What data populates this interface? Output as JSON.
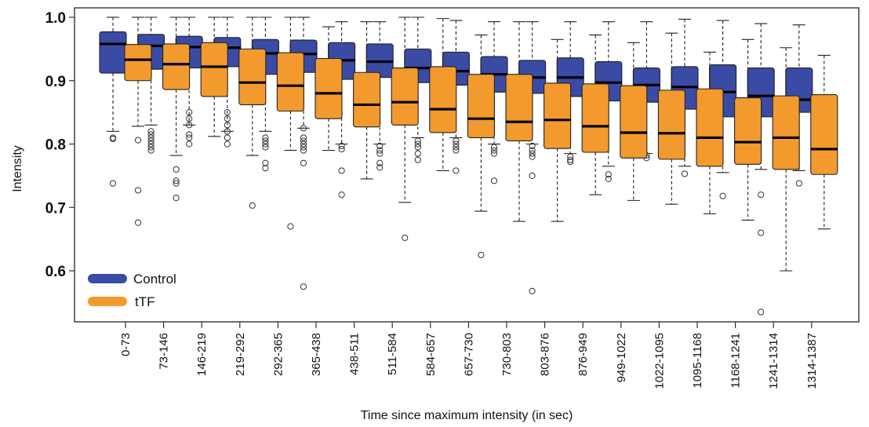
{
  "chart_data": {
    "type": "boxplot",
    "xlabel": "Time since maximum intensity (in sec)",
    "ylabel": "Intensity",
    "ylim": [
      0.52,
      1.01
    ],
    "yticks": [
      0.6,
      0.7,
      0.8,
      0.9,
      1.0
    ],
    "ytick_labels": [
      "0.6",
      "0.7",
      "0.8",
      "0.9",
      "1.0"
    ],
    "categories": [
      "0-73",
      "73-146",
      "146-219",
      "219-292",
      "292-365",
      "365-438",
      "438-511",
      "511-584",
      "584-657",
      "657-730",
      "730-803",
      "803-876",
      "876-949",
      "949-1022",
      "1022-1095",
      "1095-1168",
      "1168-1241",
      "1241-1314",
      "1314-1387"
    ],
    "legend": {
      "position": "bottom-left"
    },
    "series": [
      {
        "name": "Control",
        "color": "#3a4ba6",
        "boxes": [
          {
            "whislo": 0.82,
            "q1": 0.912,
            "med": 0.958,
            "q3": 0.977,
            "whishi": 1.0,
            "fliers": [
              0.81,
              0.808,
              0.738
            ]
          },
          {
            "whislo": 0.83,
            "q1": 0.918,
            "med": 0.955,
            "q3": 0.973,
            "whishi": 1.0,
            "fliers": [
              0.82,
              0.815,
              0.81,
              0.805,
              0.8,
              0.795,
              0.79
            ]
          },
          {
            "whislo": 0.83,
            "q1": 0.92,
            "med": 0.953,
            "q3": 0.97,
            "whishi": 1.0,
            "fliers": [
              0.85,
              0.84,
              0.83,
              0.815,
              0.81,
              0.8
            ]
          },
          {
            "whislo": 0.82,
            "q1": 0.922,
            "med": 0.952,
            "q3": 0.968,
            "whishi": 1.0,
            "fliers": [
              0.85,
              0.84,
              0.83,
              0.82,
              0.81,
              0.8
            ]
          },
          {
            "whislo": 0.82,
            "q1": 0.91,
            "med": 0.943,
            "q3": 0.965,
            "whishi": 1.0,
            "fliers": [
              0.81,
              0.805,
              0.8,
              0.795,
              0.77,
              0.762
            ]
          },
          {
            "whislo": 0.825,
            "q1": 0.913,
            "med": 0.942,
            "q3": 0.964,
            "whishi": 1.0,
            "fliers": [
              0.825,
              0.81,
              0.805,
              0.8,
              0.795,
              0.79,
              0.77,
              0.575
            ]
          },
          {
            "whislo": 0.8,
            "q1": 0.902,
            "med": 0.932,
            "q3": 0.96,
            "whishi": 0.993,
            "fliers": [
              0.797,
              0.792,
              0.758,
              0.72
            ]
          },
          {
            "whislo": 0.8,
            "q1": 0.905,
            "med": 0.93,
            "q3": 0.958,
            "whishi": 0.993,
            "fliers": [
              0.797,
              0.79,
              0.785,
              0.77,
              0.763
            ]
          },
          {
            "whislo": 0.81,
            "q1": 0.897,
            "med": 0.92,
            "q3": 0.95,
            "whishi": 1.0,
            "fliers": [
              0.805,
              0.8,
              0.795,
              0.785,
              0.775
            ]
          },
          {
            "whislo": 0.81,
            "q1": 0.893,
            "med": 0.915,
            "q3": 0.945,
            "whishi": 0.995,
            "fliers": [
              0.805,
              0.8,
              0.795,
              0.79,
              0.758
            ]
          },
          {
            "whislo": 0.8,
            "q1": 0.882,
            "med": 0.91,
            "q3": 0.938,
            "whishi": 0.993,
            "fliers": [
              0.795,
              0.79,
              0.785,
              0.742
            ]
          },
          {
            "whislo": 0.8,
            "q1": 0.88,
            "med": 0.905,
            "q3": 0.932,
            "whishi": 0.993,
            "fliers": [
              0.797,
              0.79,
              0.785,
              0.78,
              0.75,
              0.568
            ]
          },
          {
            "whislo": 0.785,
            "q1": 0.875,
            "med": 0.905,
            "q3": 0.936,
            "whishi": 0.993,
            "fliers": [
              0.78,
              0.775,
              0.772
            ]
          },
          {
            "whislo": 0.765,
            "q1": 0.868,
            "med": 0.897,
            "q3": 0.93,
            "whishi": 0.993,
            "fliers": [
              0.752,
              0.745
            ]
          },
          {
            "whislo": 0.785,
            "q1": 0.866,
            "med": 0.893,
            "q3": 0.92,
            "whishi": 0.993,
            "fliers": [
              0.782,
              0.778
            ]
          },
          {
            "whislo": 0.765,
            "q1": 0.855,
            "med": 0.89,
            "q3": 0.922,
            "whishi": 0.997,
            "fliers": [
              0.753
            ]
          },
          {
            "whislo": 0.755,
            "q1": 0.843,
            "med": 0.882,
            "q3": 0.925,
            "whishi": 0.995,
            "fliers": [
              0.718
            ]
          },
          {
            "whislo": 0.76,
            "q1": 0.843,
            "med": 0.876,
            "q3": 0.92,
            "whishi": 0.99,
            "fliers": [
              0.72,
              0.66,
              0.535
            ]
          },
          {
            "whislo": 0.758,
            "q1": 0.85,
            "med": 0.87,
            "q3": 0.92,
            "whishi": 0.988,
            "fliers": [
              0.738
            ]
          }
        ]
      },
      {
        "name": "tTF",
        "color": "#f29a2e",
        "boxes": [
          {
            "whislo": 0.828,
            "q1": 0.9,
            "med": 0.933,
            "q3": 0.957,
            "whishi": 1.0,
            "fliers": [
              0.806,
              0.727,
              0.676
            ]
          },
          {
            "whislo": 0.782,
            "q1": 0.886,
            "med": 0.926,
            "q3": 0.958,
            "whishi": 1.0,
            "fliers": [
              0.76,
              0.742,
              0.738,
              0.715
            ]
          },
          {
            "whislo": 0.812,
            "q1": 0.875,
            "med": 0.922,
            "q3": 0.96,
            "whishi": 1.0,
            "fliers": []
          },
          {
            "whislo": 0.782,
            "q1": 0.862,
            "med": 0.897,
            "q3": 0.95,
            "whishi": 1.0,
            "fliers": [
              0.703
            ]
          },
          {
            "whislo": 0.79,
            "q1": 0.852,
            "med": 0.892,
            "q3": 0.944,
            "whishi": 1.0,
            "fliers": [
              0.67
            ]
          },
          {
            "whislo": 0.79,
            "q1": 0.84,
            "med": 0.88,
            "q3": 0.935,
            "whishi": 0.985,
            "fliers": []
          },
          {
            "whislo": 0.745,
            "q1": 0.827,
            "med": 0.862,
            "q3": 0.913,
            "whishi": 0.993,
            "fliers": []
          },
          {
            "whislo": 0.708,
            "q1": 0.83,
            "med": 0.866,
            "q3": 0.92,
            "whishi": 1.0,
            "fliers": [
              0.652
            ]
          },
          {
            "whislo": 0.758,
            "q1": 0.818,
            "med": 0.855,
            "q3": 0.922,
            "whishi": 0.998,
            "fliers": []
          },
          {
            "whislo": 0.694,
            "q1": 0.81,
            "med": 0.84,
            "q3": 0.91,
            "whishi": 0.972,
            "fliers": [
              0.625
            ]
          },
          {
            "whislo": 0.678,
            "q1": 0.805,
            "med": 0.835,
            "q3": 0.91,
            "whishi": 0.993,
            "fliers": []
          },
          {
            "whislo": 0.678,
            "q1": 0.793,
            "med": 0.838,
            "q3": 0.896,
            "whishi": 0.965,
            "fliers": []
          },
          {
            "whislo": 0.72,
            "q1": 0.787,
            "med": 0.828,
            "q3": 0.895,
            "whishi": 0.972,
            "fliers": []
          },
          {
            "whislo": 0.711,
            "q1": 0.778,
            "med": 0.818,
            "q3": 0.892,
            "whishi": 0.96,
            "fliers": []
          },
          {
            "whislo": 0.705,
            "q1": 0.776,
            "med": 0.817,
            "q3": 0.885,
            "whishi": 0.975,
            "fliers": []
          },
          {
            "whislo": 0.69,
            "q1": 0.765,
            "med": 0.81,
            "q3": 0.887,
            "whishi": 0.945,
            "fliers": []
          },
          {
            "whislo": 0.68,
            "q1": 0.768,
            "med": 0.803,
            "q3": 0.873,
            "whishi": 0.965,
            "fliers": []
          },
          {
            "whislo": 0.6,
            "q1": 0.76,
            "med": 0.81,
            "q3": 0.876,
            "whishi": 0.952,
            "fliers": []
          },
          {
            "whislo": 0.666,
            "q1": 0.752,
            "med": 0.792,
            "q3": 0.878,
            "whishi": 0.94,
            "fliers": []
          }
        ]
      }
    ]
  }
}
